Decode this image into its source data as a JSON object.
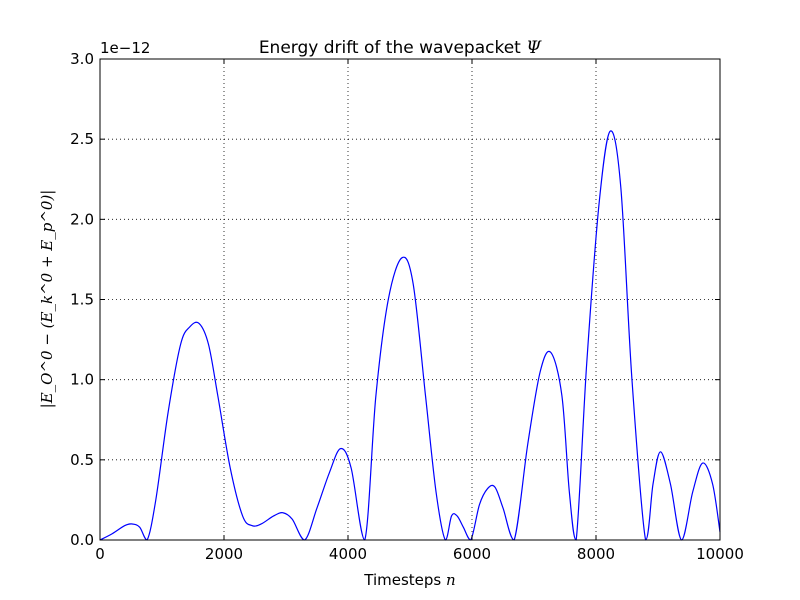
{
  "chart_data": {
    "type": "line",
    "title": "Energy drift of the wavepacket",
    "title_symbol": "Ψ",
    "xlabel": "Timesteps",
    "xlabel_symbol": "n",
    "ylabel": "|E_O^0 − (E_k^0 + E_p^0)|",
    "y_offset_label": "1e−12",
    "xlim": [
      0,
      10000
    ],
    "ylim": [
      0,
      3.0
    ],
    "grid": true,
    "x_ticks": [
      "0",
      "2000",
      "4000",
      "6000",
      "8000",
      "10000"
    ],
    "y_ticks": [
      "0.0",
      "0.5",
      "1.0",
      "1.5",
      "2.0",
      "2.5",
      "3.0"
    ],
    "series_color": "#0000ff",
    "series": [
      {
        "x": [
          0,
          200,
          400,
          520,
          640,
          760,
          900,
          1100,
          1300,
          1450,
          1600,
          1750,
          1900,
          2100,
          2300,
          2450,
          2600,
          2800,
          2950,
          3100,
          3300,
          3500,
          3700,
          3880,
          4050,
          4270,
          4450,
          4650,
          4870,
          5050,
          5250,
          5420,
          5570,
          5670,
          5760,
          5860,
          5980,
          6120,
          6250,
          6370,
          6500,
          6680,
          6900,
          7100,
          7270,
          7450,
          7570,
          7680,
          7850,
          8050,
          8230,
          8400,
          8580,
          8800,
          8920,
          9040,
          9200,
          9380,
          9560,
          9720,
          9880,
          10000
        ],
        "values": [
          0.0,
          0.04,
          0.09,
          0.1,
          0.08,
          0.0,
          0.25,
          0.8,
          1.22,
          1.33,
          1.35,
          1.22,
          0.9,
          0.45,
          0.15,
          0.09,
          0.1,
          0.15,
          0.17,
          0.13,
          0.0,
          0.2,
          0.42,
          0.57,
          0.45,
          0.0,
          0.9,
          1.5,
          1.76,
          1.6,
          0.9,
          0.3,
          0.0,
          0.15,
          0.15,
          0.08,
          0.0,
          0.22,
          0.32,
          0.33,
          0.2,
          0.0,
          0.6,
          1.05,
          1.17,
          0.9,
          0.3,
          0.0,
          1.1,
          2.1,
          2.55,
          2.2,
          1.0,
          0.0,
          0.35,
          0.55,
          0.35,
          0.0,
          0.3,
          0.48,
          0.35,
          0.05
        ]
      }
    ]
  }
}
